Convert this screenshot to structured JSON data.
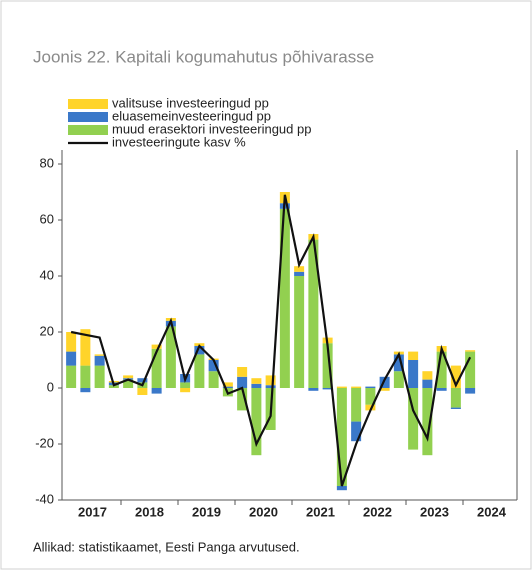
{
  "chart_data": {
    "type": "stacked_bar_line",
    "title": "Joonis 22. Kapitali kogumahutus põhivarasse",
    "source": "Allikad: statistikaamet, Eesti Panga arvutused.",
    "years": [
      "2017",
      "2018",
      "2019",
      "2020",
      "2021",
      "2022",
      "2023",
      "2024"
    ],
    "series": [
      {
        "name": "valitsuse investeeringud pp",
        "color": "#ffd42a",
        "kind": "bar",
        "values": [
          7,
          13,
          0.5,
          0.5,
          1,
          -2.5,
          1.5,
          1,
          -1.5,
          1,
          0.5,
          1.5,
          3.5,
          2,
          3.5,
          4,
          2,
          2,
          2,
          0.5,
          0.5,
          -2,
          -1,
          1,
          3,
          3,
          2,
          8,
          0.5
        ]
      },
      {
        "name": "eluasemeinvesteeringud pp",
        "color": "#3a78c9",
        "kind": "bar",
        "values": [
          5,
          -1.5,
          3.5,
          1,
          0.5,
          1.5,
          -2,
          2,
          3,
          3,
          4,
          0.5,
          4,
          1.5,
          1,
          2,
          1.5,
          -1,
          -0.5,
          -1.5,
          -7,
          0.5,
          4,
          6,
          10,
          3,
          -1,
          -0.5,
          -2
        ]
      },
      {
        "name": "muud erasektori investeeringud pp",
        "color": "#92d050",
        "kind": "bar",
        "values": [
          8,
          8,
          8,
          1,
          3,
          2,
          14,
          22,
          2,
          12,
          6,
          -3,
          -8,
          -24,
          -15,
          64,
          40,
          53,
          16,
          -35,
          -12,
          -6,
          0,
          6,
          -22,
          -24,
          13,
          -7,
          13
        ]
      },
      {
        "name": "investeeringute kasv %",
        "color": "#111111",
        "kind": "line",
        "values": [
          20,
          19,
          18,
          1,
          3,
          1,
          13,
          24,
          3,
          15,
          10,
          -2,
          0,
          -20,
          -10,
          69,
          44,
          54,
          15,
          -35,
          -20,
          -8,
          3,
          12,
          -8,
          -18,
          14,
          1,
          11
        ]
      }
    ],
    "ylim": [
      -40,
      85
    ],
    "yticks": [
      -40,
      -20,
      0,
      20,
      40,
      60,
      80
    ]
  }
}
